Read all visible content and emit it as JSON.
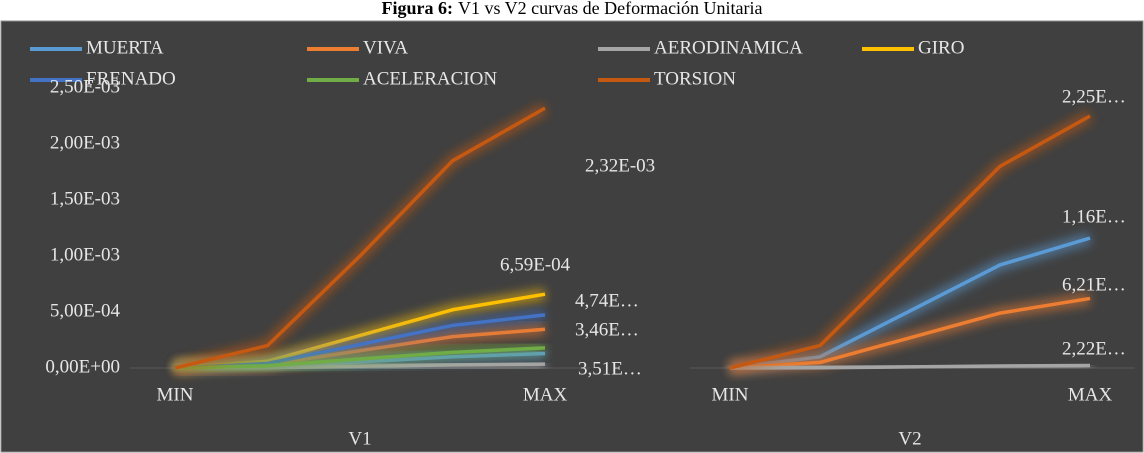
{
  "figure": {
    "label": "Figura 6:",
    "caption": "V1 vs V2 curvas de Deformación Unitaria"
  },
  "chart_data": [
    {
      "type": "line",
      "xlabel": "V1",
      "categories": [
        "MIN",
        null,
        null,
        null,
        "MAX"
      ],
      "ylim": [
        0,
        0.0025
      ],
      "yticks": [
        {
          "value": 0,
          "label": "0,00E+00"
        },
        {
          "value": 0.0005,
          "label": "5,00E-04"
        },
        {
          "value": 0.001,
          "label": "1,00E-03"
        },
        {
          "value": 0.0015,
          "label": "1,50E-03"
        },
        {
          "value": 0.002,
          "label": "2,00E-03"
        },
        {
          "value": 0.0025,
          "label": "2,50E-03"
        }
      ],
      "series": [
        {
          "name": "MUERTA",
          "color": "#5b9bd5",
          "values": [
            0,
            1e-05,
            5.5e-05,
            0.0001,
            0.00013
          ]
        },
        {
          "name": "VIVA",
          "color": "#ed7d31",
          "values": [
            0,
            3e-05,
            0.000155,
            0.00028,
            0.000346
          ],
          "value_labels": [
            null,
            null,
            null,
            null,
            "3,46E…"
          ]
        },
        {
          "name": "AERODINAMICA",
          "color": "#a5a5a5",
          "values": [
            0,
            3e-06,
            1.55e-05,
            2.8e-05,
            3.51e-05
          ],
          "value_labels": [
            null,
            null,
            null,
            null,
            "3,51E…"
          ]
        },
        {
          "name": "GIRO",
          "color": "#ffc000",
          "values": [
            0,
            6e-05,
            0.00029,
            0.00052,
            0.000659
          ],
          "value_labels": [
            null,
            null,
            null,
            null,
            "6,59E-04"
          ]
        },
        {
          "name": "FRENADO",
          "color": "#4472c4",
          "values": [
            0,
            4e-05,
            0.00021,
            0.00038,
            0.000474
          ],
          "value_labels": [
            null,
            null,
            null,
            null,
            "4,74E…"
          ]
        },
        {
          "name": "ACELERACION",
          "color": "#70ad47",
          "values": [
            0,
            2e-05,
            8e-05,
            0.00014,
            0.00018
          ]
        },
        {
          "name": "TORSION",
          "color": "#c65911",
          "values": [
            0,
            0.0002,
            0.001,
            0.00185,
            0.00232
          ],
          "value_labels": [
            null,
            null,
            null,
            null,
            "2,32E-03"
          ]
        }
      ]
    },
    {
      "type": "line",
      "xlabel": "V2",
      "categories": [
        "MIN",
        null,
        null,
        null,
        "MAX"
      ],
      "ylim": [
        0,
        0.0025
      ],
      "series": [
        {
          "name": "MUERTA",
          "color": "#5b9bd5",
          "values": [
            0,
            0.0001,
            0.00051,
            0.00092,
            0.00116
          ],
          "value_labels": [
            null,
            null,
            null,
            null,
            "1,16E…"
          ]
        },
        {
          "name": "VIVA",
          "color": "#ed7d31",
          "values": [
            0,
            5e-05,
            0.00027,
            0.00049,
            0.000621
          ],
          "value_labels": [
            null,
            null,
            null,
            null,
            "6,21E…"
          ]
        },
        {
          "name": "AERODINAMICA",
          "color": "#a5a5a5",
          "values": [
            0,
            2e-06,
            1e-05,
            1.8e-05,
            2.22e-05
          ],
          "value_labels": [
            null,
            null,
            null,
            null,
            "2,22E…"
          ]
        },
        {
          "name": "TORSION",
          "color": "#c65911",
          "values": [
            0,
            0.0002,
            0.001,
            0.0018,
            0.00225
          ],
          "value_labels": [
            null,
            null,
            null,
            null,
            "2,25E…"
          ]
        }
      ]
    }
  ]
}
